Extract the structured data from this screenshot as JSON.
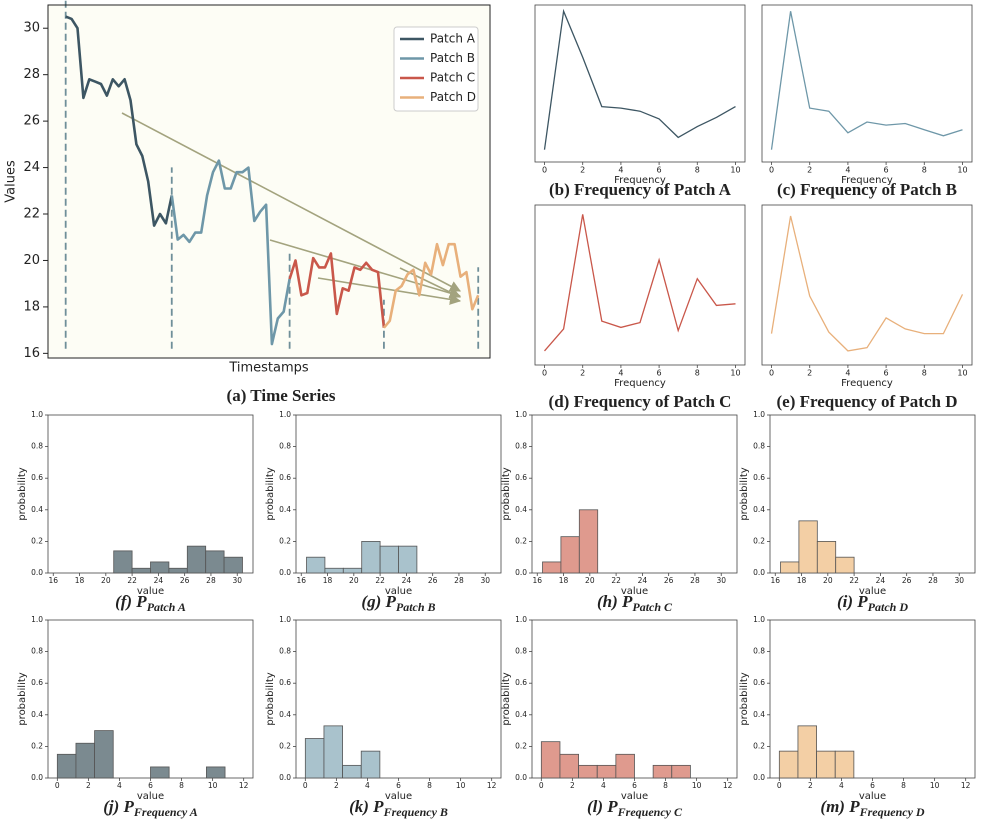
{
  "chart_data": [
    {
      "type": "line",
      "title": "(a) Time Series",
      "xlabel": "Timestamps",
      "ylabel": "Values",
      "xlim": [
        -3,
        72
      ],
      "ylim": [
        15.8,
        31
      ],
      "yticks": [
        16,
        18,
        20,
        22,
        24,
        26,
        28,
        30
      ],
      "legend": "upper right",
      "series": [
        {
          "name": "Patch A",
          "color": "#3d5663",
          "x": [
            0,
            1,
            2,
            3,
            4,
            5,
            6,
            7,
            8,
            9,
            10,
            11,
            12,
            13,
            14,
            15,
            16,
            17,
            18
          ],
          "values": [
            30.5,
            30.4,
            30.0,
            27.0,
            27.8,
            27.7,
            27.6,
            27.1,
            27.8,
            27.5,
            27.8,
            26.9,
            25.0,
            24.5,
            23.4,
            21.5,
            22.0,
            21.6,
            22.8
          ]
        },
        {
          "name": "Patch B",
          "color": "#6e97a8",
          "x": [
            18,
            19,
            20,
            21,
            22,
            23,
            24,
            25,
            26,
            27,
            28,
            29,
            30,
            31,
            32,
            33,
            34,
            35,
            36,
            37,
            38
          ],
          "values": [
            22.8,
            20.9,
            21.1,
            20.8,
            21.2,
            21.2,
            22.8,
            23.8,
            24.3,
            23.1,
            23.1,
            23.8,
            23.8,
            24.0,
            21.7,
            22.1,
            22.4,
            16.4,
            17.5,
            17.8,
            19.2
          ]
        },
        {
          "name": "Patch C",
          "color": "#c9574a",
          "x": [
            38,
            39,
            40,
            41,
            42,
            43,
            44,
            45,
            46,
            47,
            48,
            49,
            50,
            51,
            52,
            53,
            54
          ],
          "values": [
            19.2,
            20.0,
            18.5,
            18.6,
            20.1,
            19.7,
            19.7,
            20.3,
            17.7,
            18.8,
            18.7,
            19.7,
            19.6,
            19.9,
            19.6,
            19.5,
            17.1
          ]
        },
        {
          "name": "Patch D",
          "color": "#e8b07b",
          "x": [
            54,
            55,
            56,
            57,
            58,
            59,
            60,
            61,
            62,
            63,
            64,
            65,
            66,
            67,
            68,
            69,
            70
          ],
          "values": [
            17.1,
            17.4,
            18.7,
            18.9,
            19.4,
            19.6,
            18.5,
            19.9,
            19.4,
            20.7,
            19.8,
            20.7,
            20.7,
            19.3,
            19.5,
            17.9,
            18.5
          ]
        }
      ]
    },
    {
      "type": "freq",
      "title": "(b) Frequency of Patch A",
      "xlabel": "Frequency",
      "color": "#3d5663",
      "x": [
        0,
        1,
        2,
        3,
        4,
        5,
        6,
        7,
        8,
        9,
        10
      ],
      "values": [
        0.06,
        0.96,
        0.66,
        0.34,
        0.33,
        0.31,
        0.26,
        0.14,
        0.21,
        0.27,
        0.34
      ],
      "xlim": [
        -0.5,
        10.5
      ],
      "ylim": [
        -0.02,
        1.0
      ],
      "xticks": [
        0,
        2,
        4,
        6,
        8,
        10
      ]
    },
    {
      "type": "freq",
      "title": "(c) Frequency of Patch B",
      "xlabel": "Frequency",
      "color": "#6e97a8",
      "x": [
        0,
        1,
        2,
        3,
        4,
        5,
        6,
        7,
        8,
        9,
        10
      ],
      "values": [
        0.06,
        0.96,
        0.33,
        0.31,
        0.17,
        0.24,
        0.22,
        0.23,
        0.19,
        0.15,
        0.19
      ],
      "xlim": [
        -0.5,
        10.5
      ],
      "ylim": [
        -0.02,
        1.0
      ],
      "xticks": [
        0,
        2,
        4,
        6,
        8,
        10
      ]
    },
    {
      "type": "freq",
      "title": "(d) Frequency of Patch C",
      "xlabel": "Frequency",
      "color": "#c9574a",
      "x": [
        0,
        1,
        2,
        3,
        4,
        5,
        6,
        7,
        8,
        9,
        10
      ],
      "values": [
        0.07,
        0.21,
        0.94,
        0.26,
        0.22,
        0.25,
        0.65,
        0.2,
        0.53,
        0.36,
        0.37
      ],
      "xlim": [
        -0.5,
        10.5
      ],
      "ylim": [
        -0.02,
        1.0
      ],
      "xticks": [
        0,
        2,
        4,
        6,
        8,
        10
      ]
    },
    {
      "type": "freq",
      "title": "(e) Frequency of Patch D",
      "xlabel": "Frequency",
      "color": "#e8b07b",
      "x": [
        0,
        1,
        2,
        3,
        4,
        5,
        6,
        7,
        8,
        9,
        10
      ],
      "values": [
        0.18,
        0.93,
        0.42,
        0.19,
        0.07,
        0.09,
        0.28,
        0.21,
        0.18,
        0.18,
        0.43
      ],
      "xlim": [
        -0.5,
        10.5
      ],
      "ylim": [
        -0.02,
        1.0
      ],
      "xticks": [
        0,
        2,
        4,
        6,
        8,
        10
      ]
    },
    {
      "type": "histogram",
      "title": "(f) P",
      "title_subscript": "Patch A",
      "xlabel": "value",
      "ylabel": "probability",
      "color": "#7b8a90",
      "bins": [
        16.4,
        17.8,
        19.2,
        20.6,
        22.0,
        23.4,
        24.8,
        26.2,
        27.6,
        29.0,
        30.4
      ],
      "values": [
        0,
        0,
        0,
        0.14,
        0.03,
        0.07,
        0.03,
        0.17,
        0.14,
        0.1
      ],
      "xlim": [
        15.6,
        31.2
      ],
      "ylim": [
        0,
        1
      ],
      "xticks": [
        16,
        18,
        20,
        22,
        24,
        26,
        28,
        30
      ],
      "yticks": [
        {
          "value": 0,
          "label": "0.0"
        },
        0.2,
        0.4,
        0.6,
        0.8,
        {
          "value": 1,
          "label": "1.0"
        }
      ]
    },
    {
      "type": "histogram",
      "title": "(g) P",
      "title_subscript": "Patch B",
      "xlabel": "value",
      "ylabel": "probability",
      "color": "#a9c2cc",
      "bins": [
        16.4,
        17.8,
        19.2,
        20.6,
        22.0,
        23.4,
        24.8,
        26.2,
        27.6,
        29.0,
        30.4
      ],
      "values": [
        0.1,
        0.03,
        0.03,
        0.2,
        0.17,
        0.17,
        0,
        0,
        0,
        0
      ],
      "xlim": [
        15.6,
        31.2
      ],
      "ylim": [
        0,
        1
      ],
      "xticks": [
        16,
        18,
        20,
        22,
        24,
        26,
        28,
        30
      ],
      "yticks": [
        {
          "value": 0,
          "label": "0.0"
        },
        0.2,
        0.4,
        0.6,
        0.8,
        {
          "value": 1,
          "label": "1.0"
        }
      ]
    },
    {
      "type": "histogram",
      "title": "(h) P",
      "title_subscript": "Patch C",
      "xlabel": "value",
      "ylabel": "probability",
      "color": "#df9a8e",
      "bins": [
        16.4,
        17.8,
        19.2,
        20.6,
        22.0,
        23.4,
        24.8,
        26.2,
        27.6,
        29.0,
        30.4
      ],
      "values": [
        0.07,
        0.23,
        0.4,
        0,
        0,
        0,
        0,
        0,
        0,
        0
      ],
      "xlim": [
        15.6,
        31.2
      ],
      "ylim": [
        0,
        1
      ],
      "xticks": [
        16,
        18,
        20,
        22,
        24,
        26,
        28,
        30
      ],
      "yticks": [
        {
          "value": 0,
          "label": "0.0"
        },
        0.2,
        0.4,
        0.6,
        0.8,
        {
          "value": 1,
          "label": "1.0"
        }
      ]
    },
    {
      "type": "histogram",
      "title": "(i) P",
      "title_subscript": "Patch D",
      "xlabel": "value",
      "ylabel": "probability",
      "color": "#f3cfa5",
      "bins": [
        16.4,
        17.8,
        19.2,
        20.6,
        22.0,
        23.4,
        24.8,
        26.2,
        27.6,
        29.0,
        30.4
      ],
      "values": [
        0.07,
        0.33,
        0.2,
        0.1,
        0,
        0,
        0,
        0,
        0,
        0
      ],
      "xlim": [
        15.6,
        31.2
      ],
      "ylim": [
        0,
        1
      ],
      "xticks": [
        16,
        18,
        20,
        22,
        24,
        26,
        28,
        30
      ],
      "yticks": [
        {
          "value": 0,
          "label": "0.0"
        },
        0.2,
        0.4,
        0.6,
        0.8,
        {
          "value": 1,
          "label": "1.0"
        }
      ]
    },
    {
      "type": "histogram",
      "title": "(j) P",
      "title_subscript": "Frequency A",
      "xlabel": "value",
      "ylabel": "probability",
      "color": "#7b8a90",
      "bins": [
        0,
        1.2,
        2.4,
        3.6,
        4.8,
        6.0,
        7.2,
        8.4,
        9.6,
        10.8,
        12.0
      ],
      "values": [
        0.15,
        0.22,
        0.3,
        0,
        0,
        0.07,
        0,
        0,
        0.07,
        0
      ],
      "xlim": [
        -0.6,
        12.6
      ],
      "ylim": [
        0,
        1
      ],
      "xticks": [
        0,
        2,
        4,
        6,
        8,
        10,
        12
      ],
      "yticks": [
        {
          "value": 0,
          "label": "0.0"
        },
        0.2,
        0.4,
        0.6,
        0.8,
        {
          "value": 1,
          "label": "1.0"
        }
      ]
    },
    {
      "type": "histogram",
      "title": "(k) P",
      "title_subscript": "Frequency B",
      "xlabel": "value",
      "ylabel": "probability",
      "color": "#a9c2cc",
      "bins": [
        0,
        1.2,
        2.4,
        3.6,
        4.8,
        6.0,
        7.2,
        8.4,
        9.6,
        10.8,
        12.0
      ],
      "values": [
        0.25,
        0.33,
        0.08,
        0.17,
        0,
        0,
        0,
        0,
        0,
        0
      ],
      "xlim": [
        -0.6,
        12.6
      ],
      "ylim": [
        0,
        1
      ],
      "xticks": [
        0,
        2,
        4,
        6,
        8,
        10,
        12
      ],
      "yticks": [
        {
          "value": 0,
          "label": "0.0"
        },
        0.2,
        0.4,
        0.6,
        0.8,
        {
          "value": 1,
          "label": "1.0"
        }
      ]
    },
    {
      "type": "histogram",
      "title": "(l) P",
      "title_subscript": "Frequency C",
      "xlabel": "value",
      "ylabel": "probability",
      "color": "#df9a8e",
      "bins": [
        0,
        1.2,
        2.4,
        3.6,
        4.8,
        6.0,
        7.2,
        8.4,
        9.6,
        10.8,
        12.0
      ],
      "values": [
        0.23,
        0.15,
        0.08,
        0.08,
        0.15,
        0,
        0.08,
        0.08,
        0,
        0
      ],
      "xlim": [
        -0.6,
        12.6
      ],
      "ylim": [
        0,
        1
      ],
      "xticks": [
        0,
        2,
        4,
        6,
        8,
        10,
        12
      ],
      "yticks": [
        {
          "value": 0,
          "label": "0.0"
        },
        0.2,
        0.4,
        0.6,
        0.8,
        {
          "value": 1,
          "label": "1.0"
        }
      ]
    },
    {
      "type": "histogram",
      "title": "(m) P",
      "title_subscript": "Frequency D",
      "xlabel": "value",
      "ylabel": "probability",
      "color": "#f3cfa5",
      "bins": [
        0,
        1.2,
        2.4,
        3.6,
        4.8,
        6.0,
        7.2,
        8.4,
        9.6,
        10.8,
        12.0
      ],
      "values": [
        0.17,
        0.33,
        0.17,
        0.17,
        0,
        0,
        0,
        0,
        0,
        0
      ],
      "xlim": [
        -0.6,
        12.6
      ],
      "ylim": [
        0,
        1
      ],
      "xticks": [
        0,
        2,
        4,
        6,
        8,
        10,
        12
      ],
      "yticks": [
        {
          "value": 0,
          "label": "0.0"
        },
        0.2,
        0.4,
        0.6,
        0.8,
        {
          "value": 1,
          "label": "1.0"
        }
      ]
    }
  ]
}
